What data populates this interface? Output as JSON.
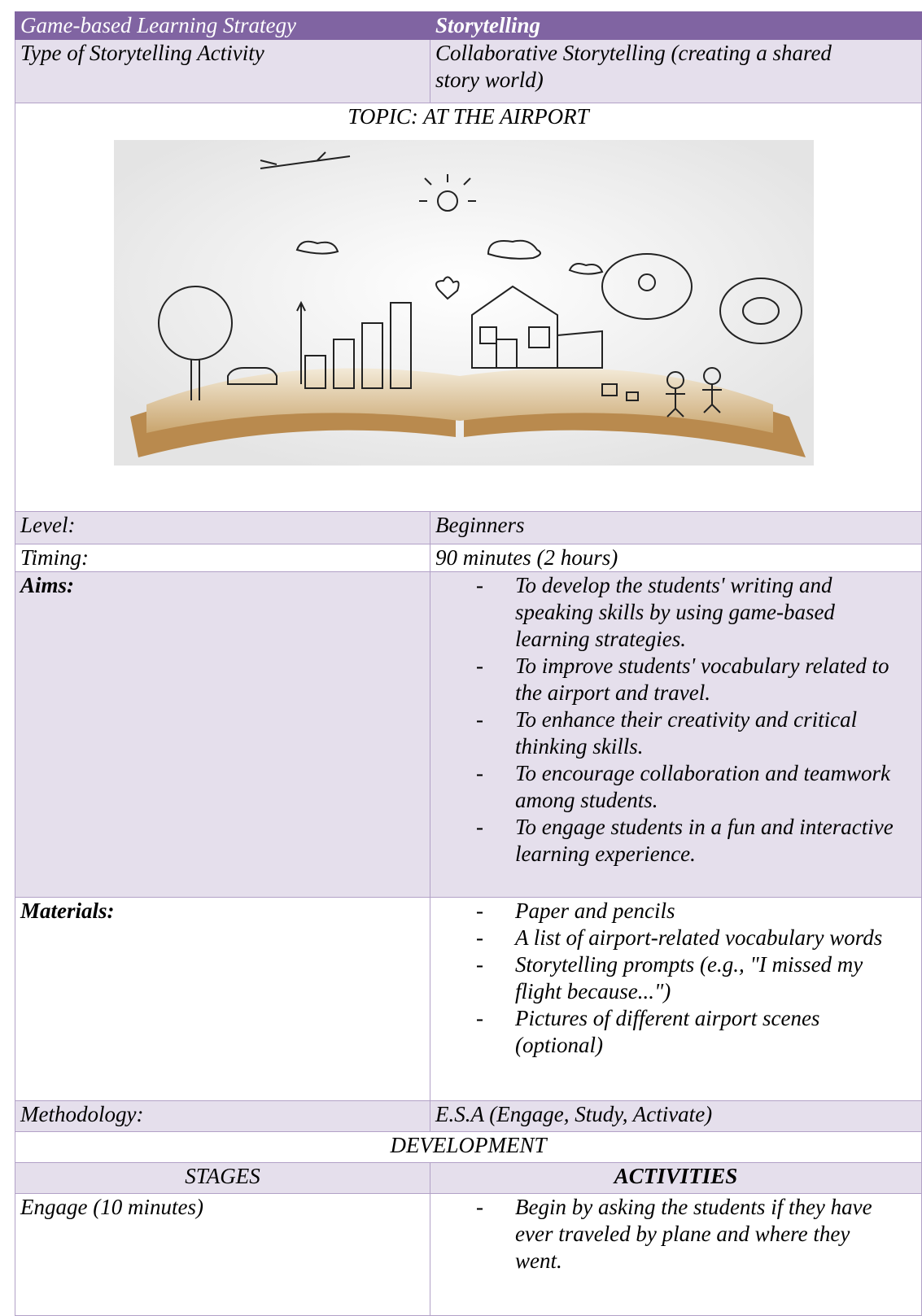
{
  "table": {
    "header": [
      "Game-based Learning Strategy",
      "Storytelling"
    ],
    "activity_type": {
      "label": "Type of Storytelling  Activity",
      "value": "Collaborative Storytelling (creating a shared story world)"
    },
    "topic": "TOPIC: AT THE AIRPORT",
    "level": {
      "label": "Level:",
      "value": "Beginners"
    },
    "timing": {
      "label": "Timing:",
      "value": "90 minutes (2 hours)"
    },
    "aims": {
      "label": "Aims:",
      "items": [
        "To develop the students' writing and speaking skills by using game-based learning strategies.",
        "To improve students' vocabulary related to the airport and travel.",
        "To enhance their creativity and critical thinking skills.",
        "To encourage collaboration and teamwork among students.",
        "To engage students in a fun and interactive learning experience."
      ]
    },
    "materials": {
      "label": "Materials:",
      "items": [
        "Paper and pencils",
        "A list of airport-related vocabulary words",
        "Storytelling prompts (e.g., \"I missed my flight because...\")",
        "Pictures of different airport scenes (optional)"
      ]
    },
    "methodology": {
      "label": "Methodology:",
      "value": "E.S.A (Engage, Study, Activate)"
    },
    "development": "DEVELOPMENT",
    "columns": [
      "STAGES",
      "ACTIVITIES"
    ],
    "stages": [
      {
        "stage": "Engage (10 minutes)",
        "activities": [
          "Begin by asking the students if they have ever traveled by plane and where they went."
        ]
      }
    ]
  }
}
